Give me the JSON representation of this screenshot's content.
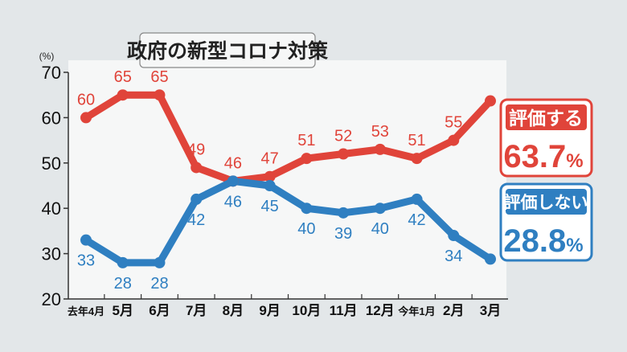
{
  "chart_data": {
    "type": "line",
    "title": "政府の新型コロナ対策",
    "ylabel": "(%)",
    "ylim": [
      20,
      70
    ],
    "yticks": [
      "20",
      "30",
      "40",
      "50",
      "60",
      "70"
    ],
    "categories": [
      "去年4月",
      "5月",
      "6月",
      "7月",
      "8月",
      "9月",
      "10月",
      "11月",
      "12月",
      "今年1月",
      "2月",
      "3月"
    ],
    "series": [
      {
        "name": "評価する",
        "color": "#e0443a",
        "values": [
          60,
          65,
          65,
          49,
          46,
          47,
          51,
          52,
          53,
          51,
          55,
          63.7
        ],
        "labels": [
          "60",
          "65",
          "65",
          "49",
          "46",
          "47",
          "51",
          "52",
          "53",
          "51",
          "55",
          ""
        ],
        "latest": "63.7",
        "unit": "%"
      },
      {
        "name": "評価しない",
        "color": "#2f7fc1",
        "values": [
          33,
          28,
          28,
          42,
          46,
          45,
          40,
          39,
          40,
          42,
          34,
          28.8
        ],
        "labels": [
          "33",
          "28",
          "28",
          "42",
          "46",
          "45",
          "40",
          "39",
          "40",
          "42",
          "34",
          ""
        ],
        "latest": "28.8",
        "unit": "%"
      }
    ],
    "grid": false,
    "legend": "right"
  }
}
